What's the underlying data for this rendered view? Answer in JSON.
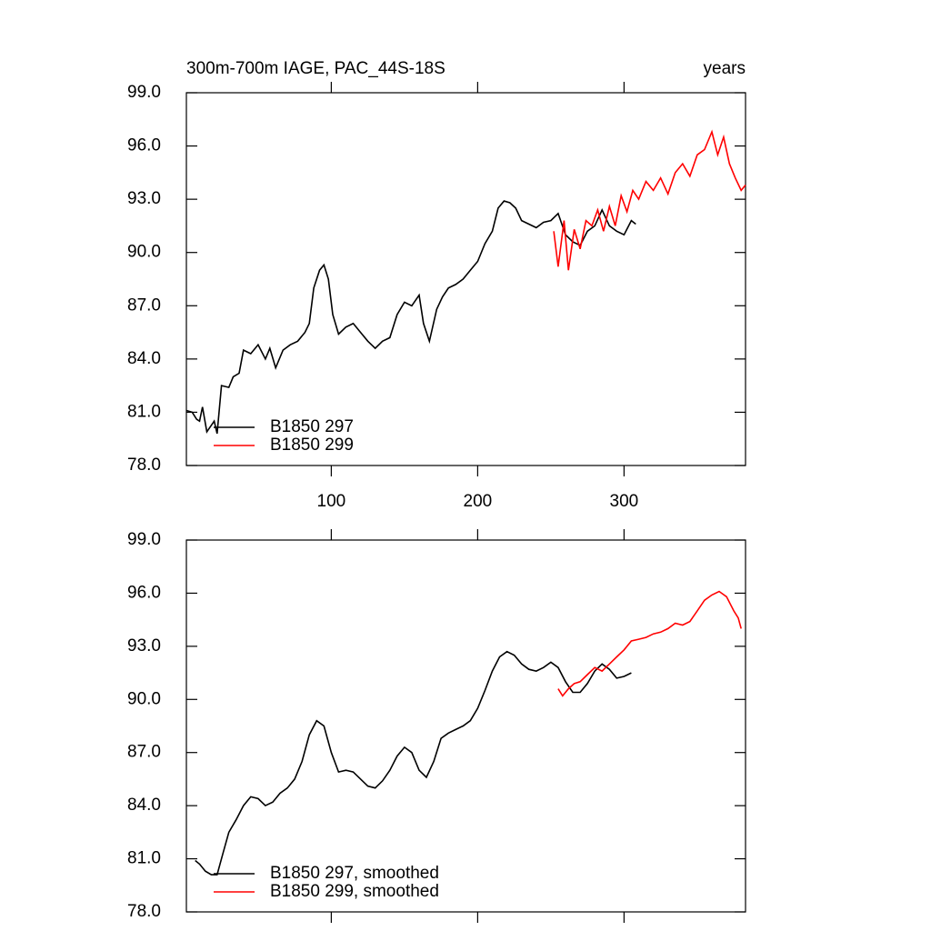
{
  "chart_data": [
    {
      "type": "line",
      "title": "300m-700m IAGE, PAC_44S-18S",
      "right_title": "years",
      "xlim": [
        1,
        383
      ],
      "xticks": [
        100,
        200,
        300
      ],
      "show_xtick_labels": true,
      "ylim": [
        78,
        99
      ],
      "yticks": [
        {
          "value": 78,
          "label": "78.0"
        },
        {
          "value": 81,
          "label": "81.0"
        },
        {
          "value": 84,
          "label": "84.0"
        },
        {
          "value": 87,
          "label": "87.0"
        },
        {
          "value": 90,
          "label": "90.0"
        },
        {
          "value": 93,
          "label": "93.0"
        },
        {
          "value": 96,
          "label": "96.0"
        },
        {
          "value": 99,
          "label": "99.0"
        }
      ],
      "legend": "lower left",
      "series": [
        {
          "name": "B1850 297",
          "color": "#000000",
          "x": [
            1,
            5,
            8,
            10,
            12,
            15,
            20,
            22,
            25,
            30,
            33,
            37,
            40,
            45,
            50,
            55,
            58,
            62,
            67,
            72,
            77,
            82,
            85,
            88,
            92,
            95,
            98,
            101,
            105,
            110,
            115,
            120,
            125,
            130,
            135,
            140,
            145,
            150,
            155,
            160,
            163,
            167,
            172,
            176,
            180,
            185,
            190,
            195,
            200,
            205,
            210,
            214,
            218,
            222,
            226,
            230,
            235,
            240,
            245,
            250,
            255,
            260,
            265,
            270,
            275,
            280,
            285,
            290,
            295,
            300,
            305,
            308
          ],
          "values": [
            81.1,
            81.0,
            80.6,
            80.5,
            81.3,
            79.9,
            80.5,
            79.8,
            82.5,
            82.4,
            83.0,
            83.2,
            84.5,
            84.3,
            84.8,
            84.0,
            84.6,
            83.5,
            84.5,
            84.8,
            85.0,
            85.5,
            86.0,
            88.0,
            89.0,
            89.3,
            88.5,
            86.5,
            85.4,
            85.8,
            86.0,
            85.5,
            85.0,
            84.6,
            85.0,
            85.2,
            86.5,
            87.2,
            87.0,
            87.6,
            86.0,
            85.0,
            86.8,
            87.5,
            88.0,
            88.2,
            88.5,
            89.0,
            89.5,
            90.5,
            91.2,
            92.5,
            92.9,
            92.8,
            92.5,
            91.8,
            91.6,
            91.4,
            91.7,
            91.8,
            92.2,
            91.0,
            90.6,
            90.4,
            91.2,
            91.5,
            92.4,
            91.5,
            91.2,
            91.0,
            91.8,
            91.6
          ]
        },
        {
          "name": "B1850 299",
          "color": "#ff0000",
          "x": [
            252,
            255,
            259,
            262,
            266,
            270,
            274,
            278,
            282,
            286,
            290,
            294,
            298,
            302,
            306,
            310,
            315,
            320,
            325,
            330,
            335,
            340,
            345,
            350,
            355,
            360,
            364,
            368,
            372,
            376,
            380,
            383
          ],
          "values": [
            91.2,
            89.2,
            91.8,
            89.0,
            91.3,
            90.2,
            91.8,
            91.5,
            92.4,
            91.2,
            92.6,
            91.5,
            93.2,
            92.3,
            93.5,
            93.0,
            94.0,
            93.5,
            94.2,
            93.3,
            94.5,
            95.0,
            94.3,
            95.5,
            95.8,
            96.8,
            95.5,
            96.5,
            95.0,
            94.2,
            93.5,
            93.8
          ]
        }
      ]
    },
    {
      "type": "line",
      "xlim": [
        1,
        383
      ],
      "xticks": [
        100,
        200,
        300
      ],
      "show_xtick_labels": false,
      "ylim": [
        78,
        99
      ],
      "yticks": [
        {
          "value": 78,
          "label": "78.0"
        },
        {
          "value": 81,
          "label": "81.0"
        },
        {
          "value": 84,
          "label": "84.0"
        },
        {
          "value": 87,
          "label": "87.0"
        },
        {
          "value": 90,
          "label": "90.0"
        },
        {
          "value": 93,
          "label": "93.0"
        },
        {
          "value": 96,
          "label": "96.0"
        },
        {
          "value": 99,
          "label": "99.0"
        }
      ],
      "legend": "lower left",
      "series": [
        {
          "name": "B1850 297, smoothed",
          "color": "#000000",
          "x": [
            7,
            10,
            14,
            18,
            22,
            26,
            30,
            35,
            40,
            45,
            50,
            55,
            60,
            65,
            70,
            75,
            80,
            85,
            90,
            95,
            100,
            105,
            110,
            115,
            120,
            125,
            130,
            135,
            140,
            145,
            150,
            155,
            160,
            165,
            170,
            175,
            180,
            185,
            190,
            195,
            200,
            205,
            210,
            215,
            220,
            225,
            230,
            235,
            240,
            245,
            250,
            255,
            260,
            265,
            270,
            275,
            280,
            285,
            290,
            295,
            300,
            305
          ],
          "values": [
            80.9,
            80.7,
            80.3,
            80.1,
            80.1,
            81.3,
            82.5,
            83.2,
            84.0,
            84.5,
            84.4,
            84.0,
            84.2,
            84.7,
            85.0,
            85.5,
            86.5,
            88.0,
            88.8,
            88.5,
            87.0,
            85.9,
            86.0,
            85.9,
            85.5,
            85.1,
            85.0,
            85.4,
            86.0,
            86.8,
            87.3,
            87.0,
            86.0,
            85.6,
            86.5,
            87.8,
            88.1,
            88.3,
            88.5,
            88.8,
            89.5,
            90.5,
            91.6,
            92.4,
            92.7,
            92.5,
            92.0,
            91.7,
            91.6,
            91.8,
            92.1,
            91.8,
            91.0,
            90.4,
            90.4,
            90.9,
            91.6,
            92.0,
            91.7,
            91.2,
            91.3,
            91.5
          ]
        },
        {
          "name": "B1850 299, smoothed",
          "color": "#ff0000",
          "x": [
            255,
            258,
            262,
            266,
            270,
            275,
            280,
            285,
            290,
            295,
            300,
            305,
            310,
            315,
            320,
            325,
            330,
            335,
            340,
            345,
            350,
            355,
            360,
            365,
            370,
            375,
            378,
            380
          ],
          "values": [
            90.6,
            90.2,
            90.6,
            90.9,
            91.0,
            91.4,
            91.8,
            91.6,
            92.0,
            92.4,
            92.8,
            93.3,
            93.4,
            93.5,
            93.7,
            93.8,
            94.0,
            94.3,
            94.2,
            94.4,
            95.0,
            95.6,
            95.9,
            96.1,
            95.8,
            95.0,
            94.6,
            94.0
          ]
        }
      ]
    }
  ]
}
